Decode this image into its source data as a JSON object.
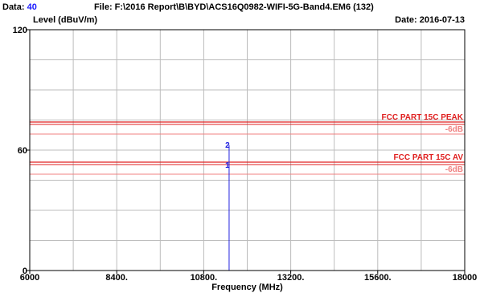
{
  "header": {
    "data_label": "Data:",
    "data_value": "40",
    "file_text": "File: F:\\2016 Report\\B\\BYD\\ACS16Q0982-WIFI-5G-Band4.EM6  (132)",
    "level_label": "Level (dBuV/m)",
    "date_text": "Date: 2016-07-13"
  },
  "colors": {
    "limit_line": "#e02020",
    "margin_line": "#f08080",
    "marker": "#2020e0",
    "grid": "#bcbcbc"
  },
  "chart_data": {
    "type": "line",
    "xlabel": "Frequency (MHz)",
    "ylabel": "Level (dBuV/m)",
    "xlim": [
      6000,
      18000
    ],
    "ylim": [
      0,
      120
    ],
    "x_ticks": [
      {
        "value": 6000,
        "label": "6000"
      },
      {
        "value": 8400,
        "label": "8400."
      },
      {
        "value": 10800,
        "label": "10800."
      },
      {
        "value": 13200,
        "label": "13200."
      },
      {
        "value": 15600,
        "label": "15600."
      },
      {
        "value": 18000,
        "label": "18000"
      }
    ],
    "y_ticks": [
      {
        "value": 0,
        "label": "0"
      },
      {
        "value": 60,
        "label": "60"
      },
      {
        "value": 120,
        "label": "120"
      }
    ],
    "x_grid_step": 1200,
    "y_grid_step": 15,
    "grid": true,
    "limits": [
      {
        "name": "FCC PART 15C PEAK",
        "value": 74,
        "margin_label": "-6dB",
        "margin_value": 68
      },
      {
        "name": "FCC PART 15C AV",
        "value": 54,
        "margin_label": "-6dB",
        "margin_value": 48
      }
    ],
    "markers": [
      {
        "label": "1",
        "frequency": 11500,
        "level": 52.5
      },
      {
        "label": "2",
        "frequency": 11500,
        "level": 62.5
      }
    ]
  }
}
